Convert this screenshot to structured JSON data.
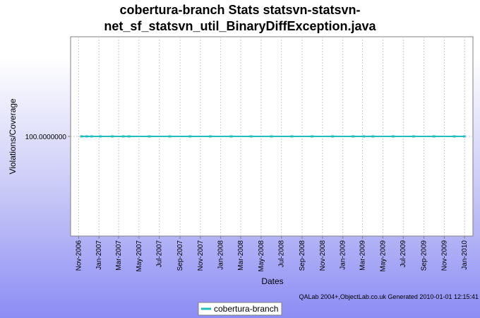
{
  "chart_data": {
    "type": "line",
    "title_line1": "cobertura-branch  Stats statsvn-statsvn-",
    "title_line2": "net_sf_statsvn_util_BinaryDiffException.java",
    "xlabel": "Dates",
    "ylabel": "Violations/Coverage",
    "y_tick_labels": [
      "100.0000000"
    ],
    "y_ticks": [
      100
    ],
    "ylim": [
      99.9,
      100.1
    ],
    "x_tick_labels": [
      "Nov-2006",
      "Jan-2007",
      "Mar-2007",
      "May-2007",
      "Jul-2007",
      "Sep-2007",
      "Nov-2007",
      "Jan-2008",
      "Mar-2008",
      "May-2008",
      "Jul-2008",
      "Sep-2008",
      "Nov-2008",
      "Jan-2009",
      "Mar-2009",
      "May-2009",
      "Jul-2009",
      "Sep-2009",
      "Nov-2009",
      "Jan-2010"
    ],
    "x_ticks": [
      "2006-11-01",
      "2007-01-01",
      "2007-03-01",
      "2007-05-01",
      "2007-07-01",
      "2007-09-01",
      "2007-11-01",
      "2008-01-01",
      "2008-03-01",
      "2008-05-01",
      "2008-07-01",
      "2008-09-01",
      "2008-11-01",
      "2009-01-01",
      "2009-03-01",
      "2009-05-01",
      "2009-07-01",
      "2009-09-01",
      "2009-11-01",
      "2010-01-01"
    ],
    "xlim": [
      "2006-10-08",
      "2010-01-26"
    ],
    "grid": true,
    "legend_placement": "bottom",
    "series": [
      {
        "name": "cobertura-branch",
        "color": "#1fbfbf",
        "x": [
          "2006-11-10",
          "2006-11-25",
          "2006-12-10",
          "2007-01-05",
          "2007-02-10",
          "2007-03-15",
          "2007-04-01",
          "2007-06-01",
          "2007-08-01",
          "2007-10-01",
          "2007-12-01",
          "2008-02-01",
          "2008-04-01",
          "2008-06-01",
          "2008-08-01",
          "2008-10-01",
          "2008-12-01",
          "2009-02-01",
          "2009-03-05",
          "2009-04-01",
          "2009-06-01",
          "2009-08-01",
          "2009-10-01",
          "2009-12-01",
          "2009-12-31"
        ],
        "values": [
          100,
          100,
          100,
          100,
          100,
          100,
          100,
          100,
          100,
          100,
          100,
          100,
          100,
          100,
          100,
          100,
          100,
          100,
          100,
          100,
          100,
          100,
          100,
          100,
          100
        ]
      }
    ]
  },
  "footer_text": "QALab 2004+,ObjectLab.co.uk Generated 2010-01-01 12:15:41"
}
